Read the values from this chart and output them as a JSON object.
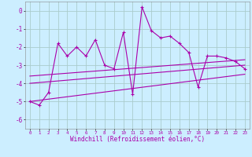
{
  "xlabel": "Windchill (Refroidissement éolien,°C)",
  "bg_color": "#cceeff",
  "grid_color": "#aacccc",
  "line_color": "#aa00aa",
  "xlim": [
    -0.5,
    23.5
  ],
  "ylim": [
    -6.5,
    0.5
  ],
  "yticks": [
    0,
    -1,
    -2,
    -3,
    -4,
    -5,
    -6
  ],
  "xticks": [
    0,
    1,
    2,
    3,
    4,
    5,
    6,
    7,
    8,
    9,
    10,
    11,
    12,
    13,
    14,
    15,
    16,
    17,
    18,
    19,
    20,
    21,
    22,
    23
  ],
  "main_series_x": [
    0,
    1,
    2,
    3,
    4,
    5,
    6,
    7,
    8,
    9,
    10,
    11,
    12,
    13,
    14,
    15,
    16,
    17,
    18,
    19,
    20,
    21,
    22,
    23
  ],
  "main_series_y": [
    -5.0,
    -5.2,
    -4.5,
    -1.8,
    -2.5,
    -2.0,
    -2.5,
    -1.6,
    -3.0,
    -3.2,
    -1.2,
    -4.6,
    0.2,
    -1.1,
    -1.5,
    -1.4,
    -1.8,
    -2.3,
    -4.2,
    -2.5,
    -2.5,
    -2.6,
    -2.8,
    -3.2
  ],
  "line1_x": [
    0,
    23
  ],
  "line1_y": [
    -3.6,
    -2.7
  ],
  "line2_x": [
    0,
    23
  ],
  "line2_y": [
    -4.0,
    -3.0
  ],
  "line3_x": [
    0,
    23
  ],
  "line3_y": [
    -5.0,
    -3.5
  ]
}
